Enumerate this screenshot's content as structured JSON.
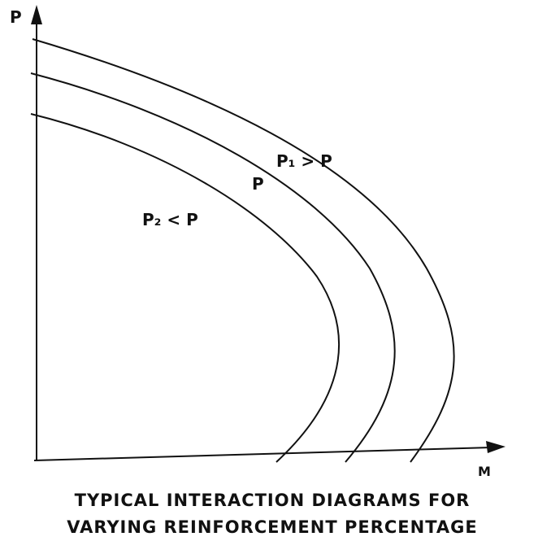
{
  "axes": {
    "y_label": "P",
    "x_label": "M"
  },
  "curves": [
    {
      "label": "P₁ > P"
    },
    {
      "label": "P"
    },
    {
      "label": "P₂ < P"
    }
  ],
  "caption": [
    "TYPICAL INTERACTION DIAGRAMS FOR",
    "VARYING REINFORCEMENT PERCENTAGE"
  ]
}
